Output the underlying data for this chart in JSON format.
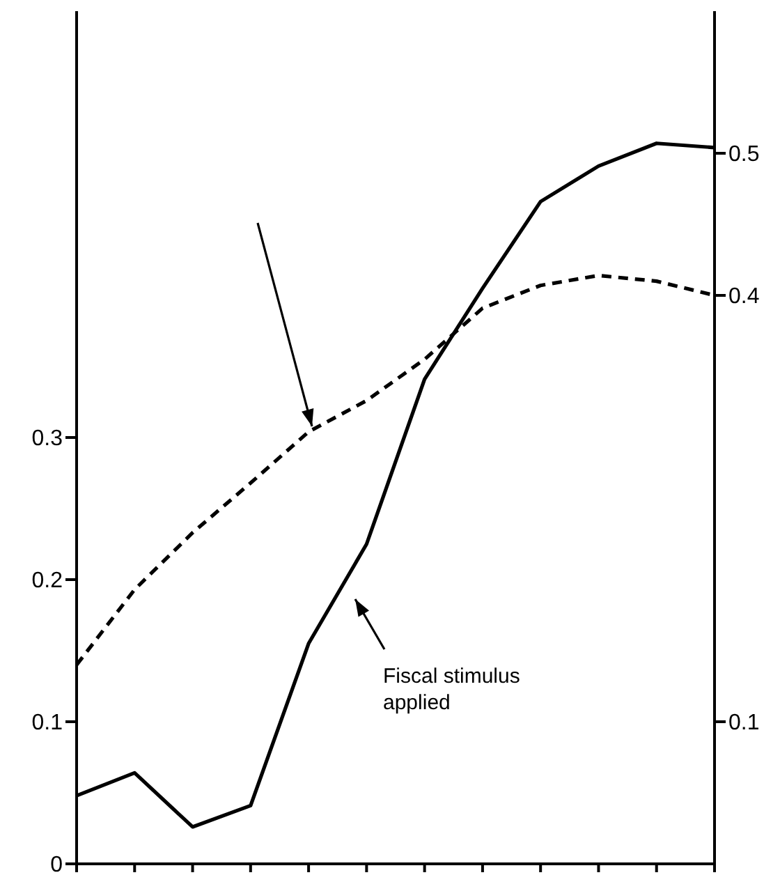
{
  "chart_data": {
    "type": "line",
    "categories": [
      null,
      null,
      null,
      null,
      null,
      null,
      null,
      null,
      null,
      null,
      null,
      null
    ],
    "series": [
      {
        "color": "#000000",
        "line_style": "solid",
        "values": [
          0.048,
          0.064,
          0.026,
          0.041,
          0.155,
          0.225,
          0.341,
          0.405,
          0.466,
          0.491,
          0.507,
          0.504
        ]
      },
      {
        "color": "#000000",
        "line_style": "dashed",
        "values": [
          0.14,
          0.193,
          0.233,
          0.268,
          0.304,
          0.326,
          0.355,
          0.391,
          0.407,
          0.414,
          0.41,
          0.4
        ]
      }
    ],
    "ylim": [
      0,
      0.6
    ],
    "yticks": [
      0,
      0.1,
      0.2,
      0.3
    ],
    "y2lim": [
      0,
      0.6
    ],
    "y2ticks": [
      0.1,
      0.4,
      0.5
    ],
    "annotations": [
      "Fiscal stimulus applied"
    ],
    "grid": false,
    "legend": false,
    "marker": "none"
  }
}
